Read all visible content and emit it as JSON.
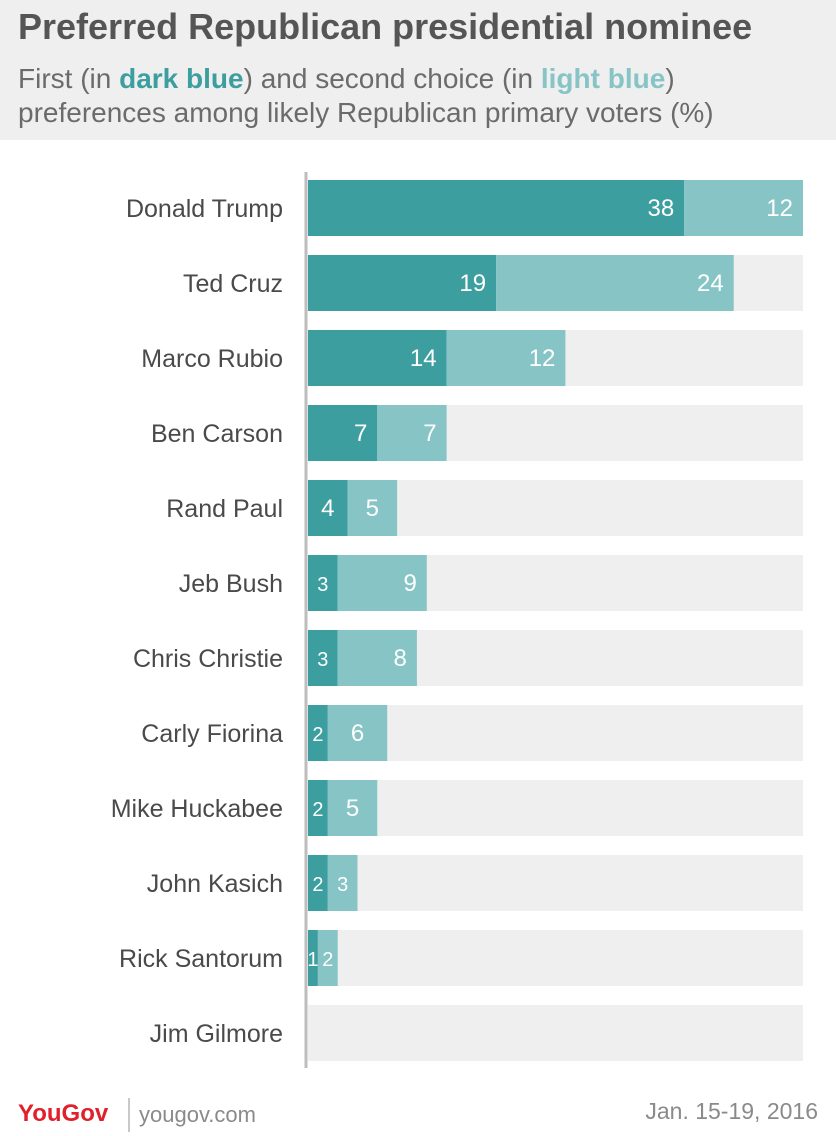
{
  "title": "Preferred Republican presidential nominee",
  "subtitle": {
    "part1": "First (in ",
    "dark_word": "dark blue",
    "part2": ") and second choice (in ",
    "light_word": "light blue",
    "part3": ") preferences among likely Republican primary voters (%)"
  },
  "footer": {
    "brand": "YouGov",
    "url": "yougov.com",
    "date": "Jan. 15-19, 2016"
  },
  "colors": {
    "first_choice": "#3d9ea0",
    "second_choice": "#86c4c6",
    "track": "#efefef",
    "axis": "#bdbdbd",
    "brand": "#e0202a"
  },
  "chart_data": {
    "type": "bar",
    "orientation": "horizontal",
    "stacked": true,
    "categories": [
      "Donald Trump",
      "Ted Cruz",
      "Marco Rubio",
      "Ben Carson",
      "Rand Paul",
      "Jeb Bush",
      "Chris Christie",
      "Carly Fiorina",
      "Mike Huckabee",
      "John Kasich",
      "Rick Santorum",
      "Jim Gilmore"
    ],
    "series": [
      {
        "name": "First choice",
        "color": "#3d9ea0",
        "values": [
          38,
          19,
          14,
          7,
          4,
          3,
          3,
          2,
          2,
          2,
          1,
          0
        ]
      },
      {
        "name": "Second choice",
        "color": "#86c4c6",
        "values": [
          12,
          24,
          12,
          7,
          5,
          9,
          8,
          6,
          5,
          3,
          2,
          0
        ]
      }
    ],
    "xlim": [
      0,
      50
    ],
    "data_labels": true,
    "legend": "in subtitle"
  }
}
